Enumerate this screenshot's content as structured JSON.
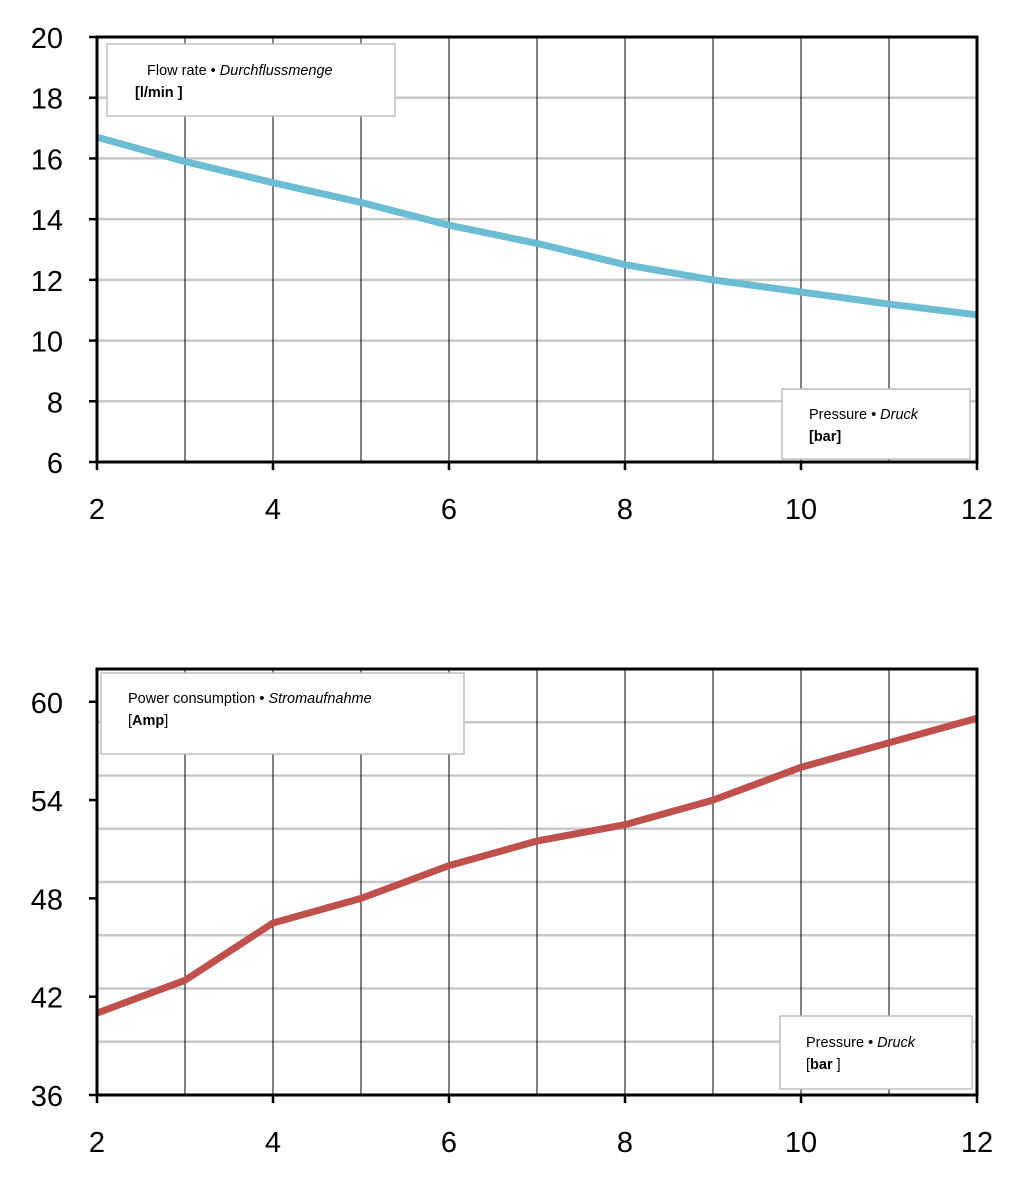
{
  "chart_data": [
    {
      "type": "line",
      "x": [
        2,
        3,
        4,
        5,
        6,
        7,
        8,
        9,
        10,
        11,
        12
      ],
      "series": [
        {
          "values": [
            16.7,
            15.9,
            15.2,
            14.55,
            13.8,
            13.2,
            12.5,
            12.0,
            11.6,
            11.2,
            10.85
          ],
          "color": "#6cbdd3"
        }
      ],
      "xlim": [
        2,
        12
      ],
      "ylim": [
        6,
        20
      ],
      "xticks": [
        2,
        4,
        6,
        8,
        10,
        12
      ],
      "yticks": [
        6,
        8,
        10,
        12,
        14,
        16,
        18,
        20
      ],
      "grid": true,
      "ylabel_box": {
        "title": "Flow rate",
        "bullet": "•",
        "title_de": "Durchflussmenge",
        "unit": "[l/min ]",
        "placement": "top-left"
      },
      "xlabel_box": {
        "title": "Pressure",
        "bullet": "•",
        "title_de": "Druck",
        "unit": "[bar]",
        "placement": "bottom-right"
      }
    },
    {
      "type": "line",
      "x": [
        2,
        3,
        4,
        5,
        6,
        7,
        8,
        9,
        10,
        11,
        12
      ],
      "series": [
        {
          "values": [
            41.0,
            43.0,
            46.5,
            48.0,
            50.0,
            51.5,
            52.5,
            54.0,
            56.0,
            57.5,
            59.0
          ],
          "color": "#c0504d"
        }
      ],
      "xlim": [
        2,
        12
      ],
      "ylim": [
        36,
        62
      ],
      "xticks": [
        2,
        4,
        6,
        8,
        10,
        12
      ],
      "yticks": [
        36,
        42,
        48,
        54,
        60
      ],
      "grid": true,
      "ylabel_box": {
        "title": "Power consumption",
        "bullet": "•",
        "title_de": "Stromaufnahme",
        "unit_open": "[",
        "unit": "Amp",
        "unit_close": "]",
        "placement": "top-left"
      },
      "xlabel_box": {
        "title": "Pressure",
        "bullet": "•",
        "title_de": "Druck",
        "unit_open": "[",
        "unit": "bar ",
        "unit_close": "]",
        "placement": "bottom-right"
      }
    }
  ]
}
